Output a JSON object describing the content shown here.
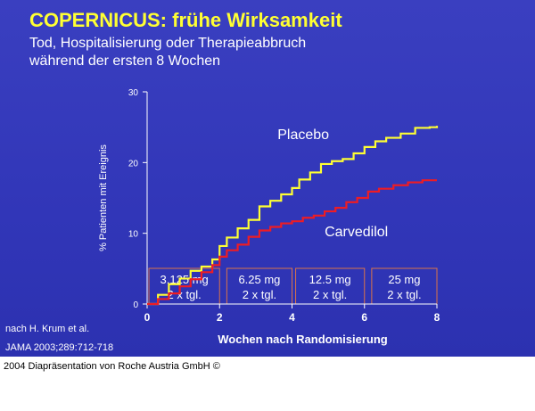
{
  "slide": {
    "title": "COPERNICUS: frühe Wirksamkeit",
    "subtitle_line1": "Tod, Hospitalisierung oder Therapieabbruch",
    "subtitle_line2": "während der ersten 8 Wochen",
    "source_line1": "nach H. Krum et al.",
    "source_line2": "JAMA 2003;289:712-718"
  },
  "footer": {
    "text": "2004 Diapräsentation von Roche Austria GmbH ©"
  },
  "colors": {
    "placebo": "#ffff33",
    "carvedilol": "#ee1c24",
    "dose_box": "#d9734a",
    "axis": "#ffffff"
  },
  "chart_data": {
    "type": "line",
    "title": "",
    "xlabel": "Wochen nach Randomisierung",
    "ylabel": "% Patienten mit Ereignis",
    "xlim": [
      0,
      8
    ],
    "ylim": [
      0,
      30
    ],
    "x_ticks": [
      0,
      2,
      4,
      6,
      8
    ],
    "y_ticks": [
      0,
      10,
      20,
      30
    ],
    "grid": false,
    "series": [
      {
        "name": "Placebo",
        "x": [
          0,
          0.3,
          0.6,
          0.9,
          1.2,
          1.5,
          1.8,
          2.0,
          2.2,
          2.5,
          2.8,
          3.1,
          3.4,
          3.7,
          4.0,
          4.2,
          4.5,
          4.8,
          5.1,
          5.4,
          5.7,
          6.0,
          6.3,
          6.6,
          7.0,
          7.4,
          7.8,
          8.0
        ],
        "values": [
          0,
          1.3,
          2.8,
          3.6,
          4.7,
          5.3,
          6.3,
          8.2,
          9.4,
          10.7,
          11.9,
          13.8,
          14.6,
          15.5,
          16.4,
          17.6,
          18.6,
          19.8,
          20.2,
          20.5,
          21.3,
          22.2,
          23.0,
          23.5,
          24.1,
          24.9,
          25.0,
          25.2
        ]
      },
      {
        "name": "Carvedilol",
        "x": [
          0,
          0.3,
          0.6,
          0.9,
          1.2,
          1.5,
          1.8,
          2.0,
          2.2,
          2.5,
          2.8,
          3.1,
          3.4,
          3.7,
          4.0,
          4.3,
          4.6,
          4.9,
          5.2,
          5.5,
          5.8,
          6.1,
          6.4,
          6.8,
          7.2,
          7.6,
          8.0
        ],
        "values": [
          0,
          0.7,
          1.5,
          2.5,
          3.5,
          4.5,
          5.5,
          6.7,
          7.6,
          8.4,
          9.5,
          10.4,
          10.9,
          11.4,
          11.7,
          12.2,
          12.5,
          13.1,
          13.6,
          14.4,
          15.0,
          15.9,
          16.3,
          16.8,
          17.2,
          17.5,
          17.5
        ]
      }
    ],
    "series_labels": [
      {
        "text": "Placebo",
        "x": 3.6,
        "y": 23.3
      },
      {
        "text": "Carvedilol",
        "x": 4.9,
        "y": 9.6
      }
    ],
    "dose_periods": [
      {
        "dose": "3.125 mg",
        "freq": "2 x tgl.",
        "x_start": 0.05,
        "x_end": 2.0
      },
      {
        "dose": "6.25 mg",
        "freq": "2 x tgl.",
        "x_start": 2.2,
        "x_end": 4.0
      },
      {
        "dose": "12.5 mg",
        "freq": "2 x tgl.",
        "x_start": 4.1,
        "x_end": 6.0
      },
      {
        "dose": "25 mg",
        "freq": "2 x tgl.",
        "x_start": 6.2,
        "x_end": 8.0
      }
    ]
  }
}
